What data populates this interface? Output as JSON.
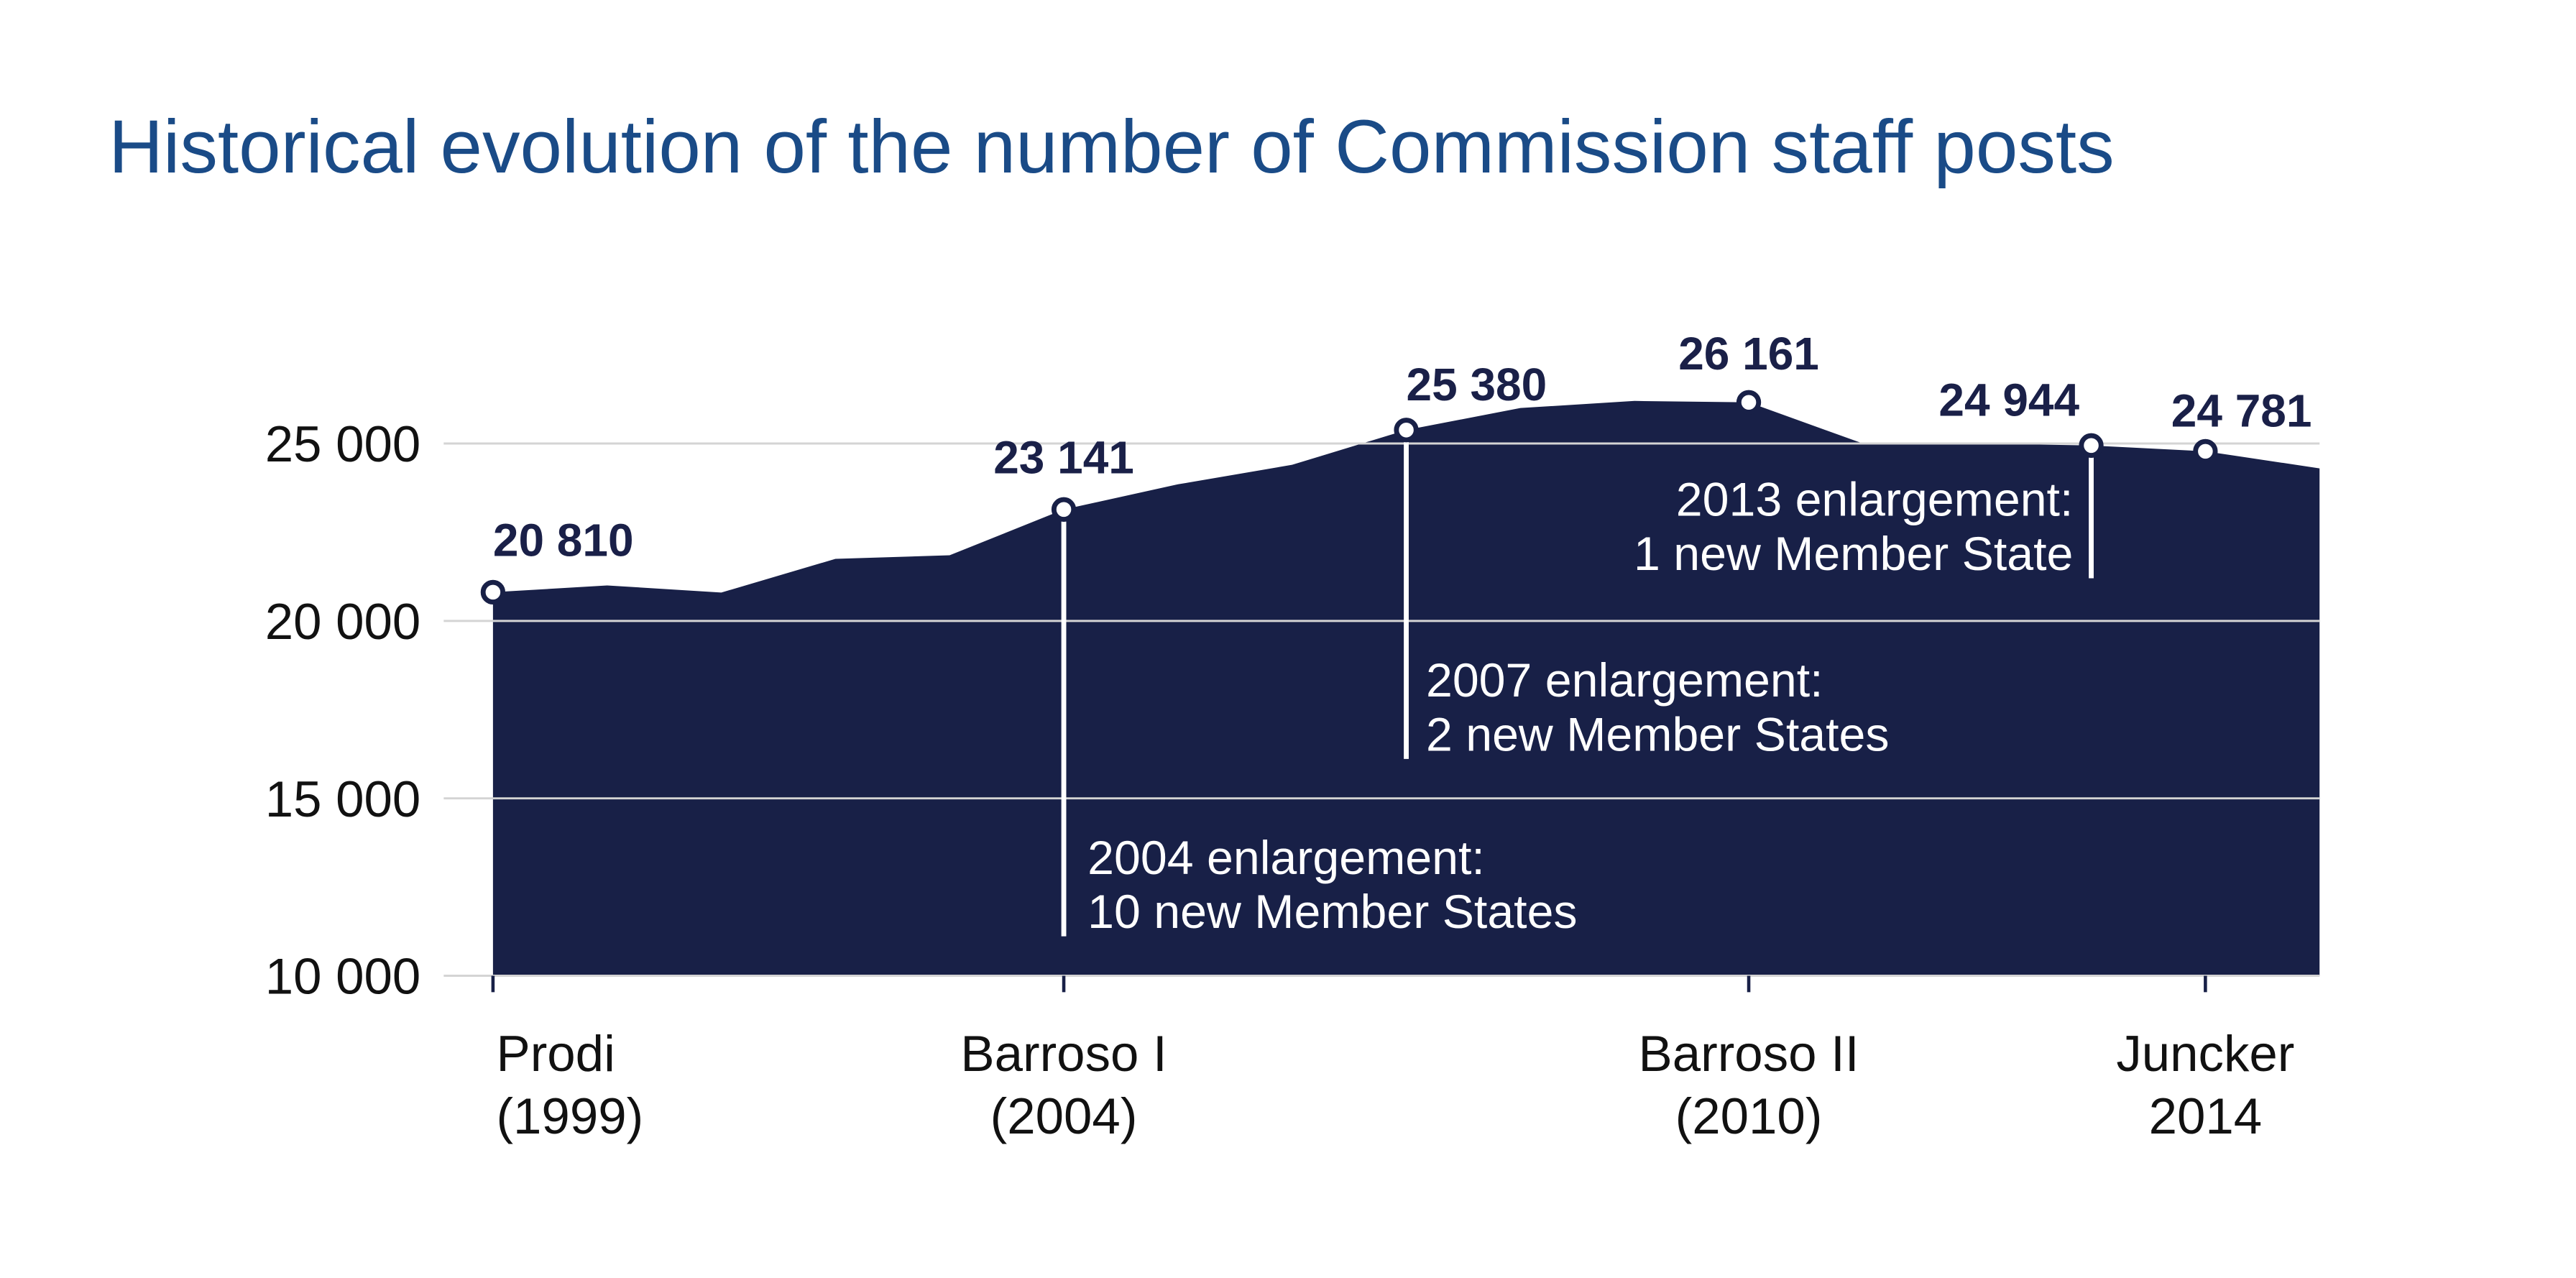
{
  "chart_data": {
    "type": "area",
    "title": "Historical evolution of the number of Commission staff posts",
    "xlabel": "",
    "ylabel": "",
    "x": [
      1999,
      2000,
      2001,
      2002,
      2003,
      2004,
      2005,
      2006,
      2007,
      2008,
      2009,
      2010,
      2011,
      2012,
      2013,
      2014,
      2015
    ],
    "values": [
      20810,
      21000,
      20800,
      21750,
      21850,
      23141,
      23850,
      24400,
      25380,
      26000,
      26200,
      26161,
      25000,
      25000,
      24944,
      24781,
      24300
    ],
    "ylim": [
      10000,
      27000
    ],
    "yticks": [
      {
        "value": 10000,
        "label": "10 000"
      },
      {
        "value": 15000,
        "label": "15 000"
      },
      {
        "value": 20000,
        "label": "20 000"
      },
      {
        "value": 25000,
        "label": "25 000"
      }
    ],
    "grid": true,
    "area_color": "#182047",
    "title_color": "#1a4b87",
    "x_categories": [
      {
        "year": 1999,
        "line1": "Prodi",
        "line2": "(1999)"
      },
      {
        "year": 2004,
        "line1": "Barroso I",
        "line2": "(2004)"
      },
      {
        "year": 2010,
        "line1": "Barroso II",
        "line2": "(2010)"
      },
      {
        "year": 2014,
        "line1": "Juncker",
        "line2": "2014"
      }
    ],
    "data_labels": [
      {
        "year": 1999,
        "value": 20810,
        "label": "20 810"
      },
      {
        "year": 2004,
        "value": 23141,
        "label": "23 141"
      },
      {
        "year": 2007,
        "value": 25380,
        "label": "25 380"
      },
      {
        "year": 2010,
        "value": 26161,
        "label": "26 161"
      },
      {
        "year": 2013,
        "value": 24944,
        "label": "24 944"
      },
      {
        "year": 2014,
        "value": 24781,
        "label": "24 781"
      }
    ],
    "annotations": [
      {
        "year": 2004,
        "line1": "2004 enlargement:",
        "line2": "10 new Member States"
      },
      {
        "year": 2007,
        "line1": "2007 enlargement:",
        "line2": "2 new Member States"
      },
      {
        "year": 2013,
        "line1": "2013 enlargement:",
        "line2": "1 new Member State"
      }
    ]
  }
}
